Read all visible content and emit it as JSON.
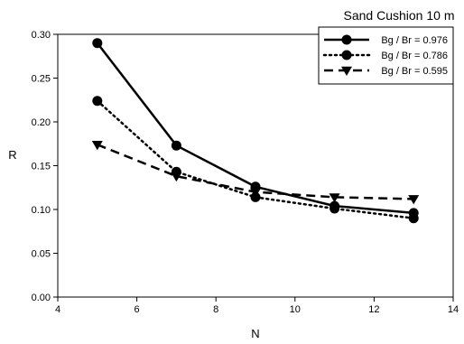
{
  "chart_data": {
    "type": "line",
    "title": "Sand Cushion 10 m",
    "xlabel": "N",
    "ylabel": "R",
    "xlim": [
      4,
      14
    ],
    "ylim": [
      0.0,
      0.3
    ],
    "xticks": [
      "4",
      "6",
      "8",
      "10",
      "12",
      "14"
    ],
    "yticks": [
      "0.00",
      "0.05",
      "0.10",
      "0.15",
      "0.20",
      "0.25",
      "0.30"
    ],
    "legend_position": "top-right",
    "grid": false,
    "series": [
      {
        "name": "Bg / Br = 0.976",
        "style": "solid",
        "marker": "circle",
        "x": [
          5,
          7,
          9,
          11,
          13
        ],
        "values": [
          0.29,
          0.173,
          0.126,
          0.104,
          0.096
        ]
      },
      {
        "name": "Bg / Br = 0.786",
        "style": "dotted",
        "marker": "circle",
        "x": [
          5,
          7,
          9,
          11,
          13
        ],
        "values": [
          0.224,
          0.143,
          0.114,
          0.101,
          0.09
        ]
      },
      {
        "name": "Bg / Br = 0.595",
        "style": "dashed",
        "marker": "triangle-down",
        "x": [
          5,
          7,
          9,
          11,
          13
        ],
        "values": [
          0.174,
          0.138,
          0.12,
          0.114,
          0.112
        ]
      }
    ]
  }
}
